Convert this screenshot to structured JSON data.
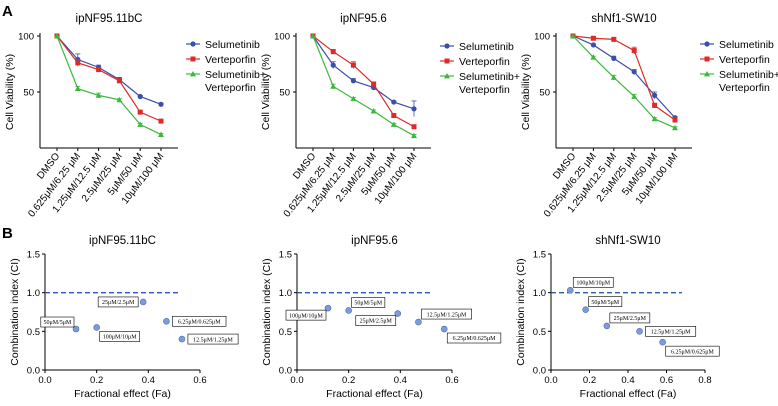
{
  "panel_labels": {
    "a": "A",
    "b": "B"
  },
  "chart_data": [
    {
      "type": "line",
      "panel": "A",
      "title": "ipNF95.11bC",
      "xlabel": "",
      "ylabel": "Cell Viability (%)",
      "categories": [
        "DMSO",
        "0.625μM/6.25 μM",
        "1.25μM/12.5 μM",
        "2.5μM/25 μM",
        "5μM/50 μM",
        "10μM/100 μM"
      ],
      "ylim": [
        0,
        100
      ],
      "yticks": [
        50,
        100
      ],
      "series": [
        {
          "name": "Selumetinib",
          "color": "#3b4fa8",
          "marker": "circle",
          "values": [
            100,
            79,
            72,
            61,
            46,
            39
          ],
          "errors": [
            0,
            5,
            2,
            2,
            1,
            1
          ]
        },
        {
          "name": "Verteporfin",
          "color": "#e02a2a",
          "marker": "square",
          "values": [
            100,
            76,
            70,
            60,
            32,
            24
          ],
          "errors": [
            0,
            3,
            2,
            2,
            1,
            1
          ]
        },
        {
          "name": "Selumetinib+ Verteporfin",
          "color": "#3db83d",
          "marker": "triangle",
          "values": [
            100,
            53,
            47,
            43,
            21,
            12
          ],
          "errors": [
            0,
            2,
            2,
            1,
            1,
            1
          ]
        }
      ]
    },
    {
      "type": "line",
      "panel": "A",
      "title": "ipNF95.6",
      "xlabel": "",
      "ylabel": "Cell Viability (%)",
      "categories": [
        "DMSO",
        "0.625μM/6.25 μM",
        "1.25μM/12.5 μM",
        "2.5μM/25 μM",
        "5μM/50 μM",
        "10μM/100 μM"
      ],
      "ylim": [
        0,
        100
      ],
      "yticks": [
        50,
        100
      ],
      "series": [
        {
          "name": "Selumetinib",
          "color": "#3b4fa8",
          "marker": "circle",
          "values": [
            100,
            74,
            60,
            54,
            41,
            35
          ],
          "errors": [
            0,
            3,
            2,
            2,
            1,
            7
          ]
        },
        {
          "name": "Verteporfin",
          "color": "#e02a2a",
          "marker": "square",
          "values": [
            100,
            86,
            74,
            57,
            29,
            19
          ],
          "errors": [
            0,
            2,
            3,
            2,
            1,
            1
          ]
        },
        {
          "name": "Selumetinib+ Verteporfin",
          "color": "#3db83d",
          "marker": "triangle",
          "values": [
            100,
            55,
            44,
            33,
            21,
            11
          ],
          "errors": [
            0,
            2,
            1,
            1,
            1,
            1
          ]
        }
      ]
    },
    {
      "type": "line",
      "panel": "A",
      "title": "shNf1-SW10",
      "xlabel": "",
      "ylabel": "Cell Viability (%)",
      "categories": [
        "DMSO",
        "0.625μM/6.25 μM",
        "1.25μM/12.5 μM",
        "2.5μM/25 μM",
        "5μM/50 μM",
        "10μM/100 μM"
      ],
      "ylim": [
        0,
        100
      ],
      "yticks": [
        50,
        100
      ],
      "series": [
        {
          "name": "Selumetinib",
          "color": "#3b4fa8",
          "marker": "circle",
          "values": [
            100,
            92,
            80,
            68,
            47,
            27
          ],
          "errors": [
            0,
            1,
            2,
            2,
            3,
            1
          ]
        },
        {
          "name": "Verteporfin",
          "color": "#e02a2a",
          "marker": "square",
          "values": [
            100,
            98,
            97,
            87,
            38,
            25
          ],
          "errors": [
            0,
            1,
            1,
            3,
            2,
            1
          ]
        },
        {
          "name": "Selumetinib+ Verteporfin",
          "color": "#3db83d",
          "marker": "triangle",
          "values": [
            100,
            81,
            63,
            46,
            26,
            18
          ],
          "errors": [
            0,
            1,
            2,
            2,
            1,
            1
          ]
        }
      ]
    },
    {
      "type": "scatter",
      "panel": "B",
      "title": "ipNF95.11bC",
      "xlabel": "Fractional effect (Fa)",
      "ylabel": "Combination index (CI)",
      "xlim": [
        0,
        0.6
      ],
      "ylim": [
        0,
        1.5
      ],
      "xticks": [
        "0.0",
        "0.2",
        "0.4",
        "0.6"
      ],
      "yticks": [
        "0.0",
        "0.5",
        "1.0",
        "1.5"
      ],
      "reference_line": 1.0,
      "reference_line_end": 0.52,
      "point_color": "#7e9bd6",
      "points": [
        {
          "x": 0.12,
          "y": 0.53,
          "label": "50μM/5μM",
          "label_pos": "above-left"
        },
        {
          "x": 0.2,
          "y": 0.55,
          "label": "100μM/10μM",
          "label_pos": "below-right"
        },
        {
          "x": 0.38,
          "y": 0.88,
          "label": "25μM/2.5μM",
          "label_pos": "left"
        },
        {
          "x": 0.47,
          "y": 0.63,
          "label": "6.25μM/0.625μM",
          "label_pos": "right"
        },
        {
          "x": 0.53,
          "y": 0.4,
          "label": "12.5μM/1.25μM",
          "label_pos": "right"
        }
      ]
    },
    {
      "type": "scatter",
      "panel": "B",
      "title": "ipNF95.6",
      "xlabel": "Fractional effect (Fa)",
      "ylabel": "Combination index (CI)",
      "xlim": [
        0,
        0.6
      ],
      "ylim": [
        0,
        1.5
      ],
      "xticks": [
        "0.0",
        "0.2",
        "0.4",
        "0.6"
      ],
      "yticks": [
        "0.0",
        "0.5",
        "1.0",
        "1.5"
      ],
      "reference_line": 1.0,
      "reference_line_end": 0.52,
      "point_color": "#7e9bd6",
      "points": [
        {
          "x": 0.12,
          "y": 0.8,
          "label": "100μM/10μM",
          "label_pos": "below-left"
        },
        {
          "x": 0.2,
          "y": 0.77,
          "label": "50μM/5μM",
          "label_pos": "above-right"
        },
        {
          "x": 0.39,
          "y": 0.73,
          "label": "25μM/2.5μM",
          "label_pos": "below-left"
        },
        {
          "x": 0.47,
          "y": 0.62,
          "label": "12.5μM/1.25μM",
          "label_pos": "above-right"
        },
        {
          "x": 0.57,
          "y": 0.53,
          "label": "6.25μM/0.625μM",
          "label_pos": "below-right"
        }
      ]
    },
    {
      "type": "scatter",
      "panel": "B",
      "title": "shNf1-SW10",
      "xlabel": "Fractional effect (Fa)",
      "ylabel": "Combination index (CI)",
      "xlim": [
        0,
        0.8
      ],
      "ylim": [
        0,
        1.5
      ],
      "xticks": [
        "0.0",
        "0.2",
        "0.4",
        "0.6",
        "0.8"
      ],
      "yticks": [
        "0.0",
        "0.5",
        "1.0",
        "1.5"
      ],
      "reference_line": 1.0,
      "reference_line_end": 0.68,
      "point_color": "#7e9bd6",
      "points": [
        {
          "x": 0.1,
          "y": 1.03,
          "label": "100μM/10μM",
          "label_pos": "above-right"
        },
        {
          "x": 0.18,
          "y": 0.78,
          "label": "50μM/5μM",
          "label_pos": "above-right"
        },
        {
          "x": 0.29,
          "y": 0.57,
          "label": "25μM/2.5μM",
          "label_pos": "above-right"
        },
        {
          "x": 0.46,
          "y": 0.5,
          "label": "12.5μM/1.25μM",
          "label_pos": "right"
        },
        {
          "x": 0.58,
          "y": 0.36,
          "label": "6.25μM/0.625μM",
          "label_pos": "below-right"
        }
      ]
    }
  ]
}
